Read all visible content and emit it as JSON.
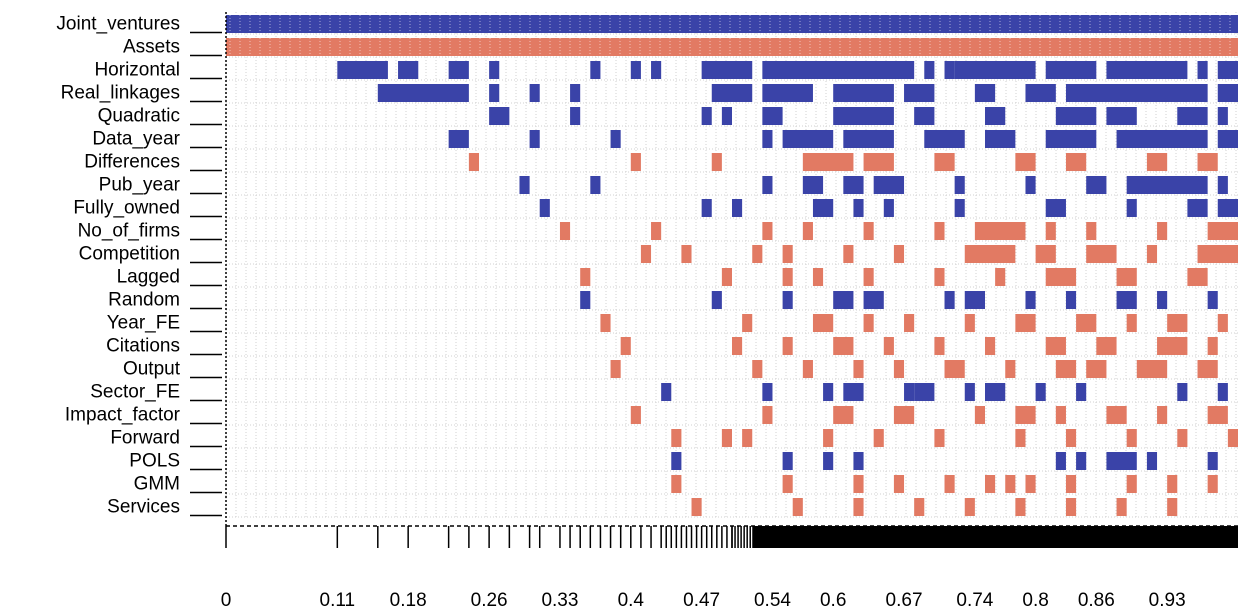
{
  "chart_data": {
    "type": "heatmap",
    "title": "",
    "xlabel": "",
    "ylabel": "",
    "x_range": [
      0,
      1
    ],
    "x_tick_labels": [
      "0",
      "0.11",
      "0.18",
      "0.26",
      "0.33",
      "0.4",
      "0.47",
      "0.54",
      "0.6",
      "0.67",
      "0.74",
      "0.8",
      "0.86",
      "0.93"
    ],
    "x_tick_values": [
      0,
      0.11,
      0.18,
      0.26,
      0.33,
      0.4,
      0.47,
      0.54,
      0.6,
      0.67,
      0.74,
      0.8,
      0.86,
      0.93
    ],
    "grid": true,
    "legend": "none",
    "colors": {
      "positive": "#3a43a8",
      "negative": "#e27a63",
      "axis": "#000000",
      "grid": "#d2d2d2"
    },
    "variables": [
      {
        "name": "Joint_ventures",
        "sign": "positive",
        "intervals": [
          [
            0.0,
            1.0
          ]
        ]
      },
      {
        "name": "Assets",
        "sign": "negative",
        "intervals": [
          [
            0.0,
            1.0
          ]
        ]
      },
      {
        "name": "Horizontal",
        "sign": "positive",
        "intervals": [
          [
            0.11,
            0.16
          ],
          [
            0.17,
            0.19
          ],
          [
            0.22,
            0.24
          ],
          [
            0.26,
            0.27
          ],
          [
            0.36,
            0.37
          ],
          [
            0.4,
            0.41
          ],
          [
            0.42,
            0.43
          ],
          [
            0.47,
            0.52
          ],
          [
            0.53,
            0.68
          ],
          [
            0.69,
            0.7
          ],
          [
            0.71,
            0.72
          ],
          [
            0.72,
            0.75
          ],
          [
            0.75,
            0.8
          ],
          [
            0.81,
            0.86
          ],
          [
            0.87,
            0.95
          ],
          [
            0.96,
            0.97
          ],
          [
            0.98,
            1.0
          ]
        ]
      },
      {
        "name": "Real_linkages",
        "sign": "positive",
        "intervals": [
          [
            0.15,
            0.24
          ],
          [
            0.26,
            0.27
          ],
          [
            0.3,
            0.31
          ],
          [
            0.34,
            0.35
          ],
          [
            0.48,
            0.52
          ],
          [
            0.53,
            0.58
          ],
          [
            0.6,
            0.66
          ],
          [
            0.67,
            0.7
          ],
          [
            0.74,
            0.76
          ],
          [
            0.79,
            0.82
          ],
          [
            0.83,
            0.97
          ],
          [
            0.98,
            1.0
          ]
        ]
      },
      {
        "name": "Quadratic",
        "sign": "positive",
        "intervals": [
          [
            0.26,
            0.28
          ],
          [
            0.34,
            0.35
          ],
          [
            0.47,
            0.48
          ],
          [
            0.49,
            0.5
          ],
          [
            0.53,
            0.55
          ],
          [
            0.6,
            0.66
          ],
          [
            0.68,
            0.7
          ],
          [
            0.75,
            0.77
          ],
          [
            0.82,
            0.86
          ],
          [
            0.87,
            0.9
          ],
          [
            0.94,
            0.97
          ],
          [
            0.98,
            0.99
          ]
        ]
      },
      {
        "name": "Data_year",
        "sign": "positive",
        "intervals": [
          [
            0.22,
            0.24
          ],
          [
            0.3,
            0.31
          ],
          [
            0.38,
            0.39
          ],
          [
            0.53,
            0.54
          ],
          [
            0.55,
            0.6
          ],
          [
            0.61,
            0.66
          ],
          [
            0.69,
            0.73
          ],
          [
            0.75,
            0.78
          ],
          [
            0.81,
            0.86
          ],
          [
            0.88,
            0.97
          ],
          [
            0.98,
            1.0
          ]
        ]
      },
      {
        "name": "Differences",
        "sign": "negative",
        "intervals": [
          [
            0.24,
            0.25
          ],
          [
            0.4,
            0.41
          ],
          [
            0.48,
            0.49
          ],
          [
            0.57,
            0.62
          ],
          [
            0.63,
            0.66
          ],
          [
            0.7,
            0.72
          ],
          [
            0.78,
            0.8
          ],
          [
            0.83,
            0.85
          ],
          [
            0.91,
            0.93
          ],
          [
            0.96,
            0.98
          ]
        ]
      },
      {
        "name": "Pub_year",
        "sign": "positive",
        "intervals": [
          [
            0.29,
            0.3
          ],
          [
            0.36,
            0.37
          ],
          [
            0.53,
            0.54
          ],
          [
            0.57,
            0.59
          ],
          [
            0.61,
            0.63
          ],
          [
            0.64,
            0.67
          ],
          [
            0.72,
            0.73
          ],
          [
            0.79,
            0.8
          ],
          [
            0.85,
            0.87
          ],
          [
            0.89,
            0.97
          ],
          [
            0.98,
            0.99
          ]
        ]
      },
      {
        "name": "Fully_owned",
        "sign": "positive",
        "intervals": [
          [
            0.31,
            0.32
          ],
          [
            0.47,
            0.48
          ],
          [
            0.5,
            0.51
          ],
          [
            0.58,
            0.6
          ],
          [
            0.62,
            0.63
          ],
          [
            0.65,
            0.66
          ],
          [
            0.72,
            0.73
          ],
          [
            0.81,
            0.83
          ],
          [
            0.89,
            0.9
          ],
          [
            0.95,
            0.97
          ],
          [
            0.98,
            1.0
          ]
        ]
      },
      {
        "name": "No_of_firms",
        "sign": "negative",
        "intervals": [
          [
            0.33,
            0.34
          ],
          [
            0.42,
            0.43
          ],
          [
            0.53,
            0.54
          ],
          [
            0.57,
            0.58
          ],
          [
            0.63,
            0.64
          ],
          [
            0.7,
            0.71
          ],
          [
            0.74,
            0.79
          ],
          [
            0.81,
            0.82
          ],
          [
            0.85,
            0.86
          ],
          [
            0.92,
            0.93
          ],
          [
            0.97,
            1.0
          ]
        ]
      },
      {
        "name": "Competition",
        "sign": "negative",
        "intervals": [
          [
            0.41,
            0.42
          ],
          [
            0.45,
            0.46
          ],
          [
            0.52,
            0.53
          ],
          [
            0.55,
            0.56
          ],
          [
            0.61,
            0.62
          ],
          [
            0.66,
            0.67
          ],
          [
            0.73,
            0.78
          ],
          [
            0.8,
            0.82
          ],
          [
            0.85,
            0.88
          ],
          [
            0.91,
            0.92
          ],
          [
            0.96,
            1.0
          ]
        ]
      },
      {
        "name": "Lagged",
        "sign": "negative",
        "intervals": [
          [
            0.35,
            0.36
          ],
          [
            0.49,
            0.5
          ],
          [
            0.55,
            0.56
          ],
          [
            0.58,
            0.59
          ],
          [
            0.63,
            0.64
          ],
          [
            0.7,
            0.71
          ],
          [
            0.76,
            0.77
          ],
          [
            0.81,
            0.84
          ],
          [
            0.88,
            0.9
          ],
          [
            0.95,
            0.97
          ]
        ]
      },
      {
        "name": "Random",
        "sign": "positive",
        "intervals": [
          [
            0.35,
            0.36
          ],
          [
            0.48,
            0.49
          ],
          [
            0.55,
            0.56
          ],
          [
            0.6,
            0.62
          ],
          [
            0.63,
            0.65
          ],
          [
            0.71,
            0.72
          ],
          [
            0.73,
            0.75
          ],
          [
            0.79,
            0.8
          ],
          [
            0.83,
            0.84
          ],
          [
            0.88,
            0.9
          ],
          [
            0.92,
            0.93
          ],
          [
            0.97,
            0.98
          ]
        ]
      },
      {
        "name": "Year_FE",
        "sign": "negative",
        "intervals": [
          [
            0.37,
            0.38
          ],
          [
            0.51,
            0.52
          ],
          [
            0.58,
            0.6
          ],
          [
            0.63,
            0.64
          ],
          [
            0.67,
            0.68
          ],
          [
            0.73,
            0.74
          ],
          [
            0.78,
            0.8
          ],
          [
            0.84,
            0.86
          ],
          [
            0.89,
            0.9
          ],
          [
            0.93,
            0.95
          ],
          [
            0.98,
            0.99
          ]
        ]
      },
      {
        "name": "Citations",
        "sign": "negative",
        "intervals": [
          [
            0.39,
            0.4
          ],
          [
            0.5,
            0.51
          ],
          [
            0.55,
            0.56
          ],
          [
            0.6,
            0.62
          ],
          [
            0.65,
            0.66
          ],
          [
            0.7,
            0.71
          ],
          [
            0.75,
            0.76
          ],
          [
            0.81,
            0.83
          ],
          [
            0.86,
            0.88
          ],
          [
            0.92,
            0.95
          ],
          [
            0.97,
            0.98
          ]
        ]
      },
      {
        "name": "Output",
        "sign": "negative",
        "intervals": [
          [
            0.38,
            0.39
          ],
          [
            0.52,
            0.53
          ],
          [
            0.57,
            0.58
          ],
          [
            0.62,
            0.63
          ],
          [
            0.66,
            0.67
          ],
          [
            0.71,
            0.73
          ],
          [
            0.77,
            0.78
          ],
          [
            0.82,
            0.84
          ],
          [
            0.85,
            0.87
          ],
          [
            0.9,
            0.93
          ],
          [
            0.96,
            0.98
          ]
        ]
      },
      {
        "name": "Sector_FE",
        "sign": "positive",
        "intervals": [
          [
            0.43,
            0.44
          ],
          [
            0.53,
            0.54
          ],
          [
            0.59,
            0.6
          ],
          [
            0.61,
            0.63
          ],
          [
            0.67,
            0.68
          ],
          [
            0.68,
            0.7
          ],
          [
            0.73,
            0.74
          ],
          [
            0.75,
            0.77
          ],
          [
            0.8,
            0.81
          ],
          [
            0.84,
            0.85
          ],
          [
            0.94,
            0.95
          ],
          [
            0.98,
            0.99
          ]
        ]
      },
      {
        "name": "Impact_factor",
        "sign": "negative",
        "intervals": [
          [
            0.4,
            0.41
          ],
          [
            0.53,
            0.54
          ],
          [
            0.6,
            0.62
          ],
          [
            0.66,
            0.68
          ],
          [
            0.74,
            0.75
          ],
          [
            0.78,
            0.8
          ],
          [
            0.82,
            0.83
          ],
          [
            0.87,
            0.89
          ],
          [
            0.92,
            0.93
          ],
          [
            0.97,
            0.99
          ]
        ]
      },
      {
        "name": "Forward",
        "sign": "negative",
        "intervals": [
          [
            0.44,
            0.45
          ],
          [
            0.49,
            0.5
          ],
          [
            0.51,
            0.52
          ],
          [
            0.59,
            0.6
          ],
          [
            0.64,
            0.65
          ],
          [
            0.7,
            0.71
          ],
          [
            0.78,
            0.79
          ],
          [
            0.83,
            0.84
          ],
          [
            0.89,
            0.9
          ],
          [
            0.94,
            0.95
          ],
          [
            0.99,
            1.0
          ]
        ]
      },
      {
        "name": "POLS",
        "sign": "positive",
        "intervals": [
          [
            0.44,
            0.45
          ],
          [
            0.55,
            0.56
          ],
          [
            0.59,
            0.6
          ],
          [
            0.62,
            0.63
          ],
          [
            0.82,
            0.83
          ],
          [
            0.84,
            0.85
          ],
          [
            0.87,
            0.9
          ],
          [
            0.91,
            0.92
          ],
          [
            0.97,
            0.98
          ]
        ]
      },
      {
        "name": "GMM",
        "sign": "negative",
        "intervals": [
          [
            0.44,
            0.45
          ],
          [
            0.55,
            0.56
          ],
          [
            0.62,
            0.63
          ],
          [
            0.66,
            0.67
          ],
          [
            0.71,
            0.72
          ],
          [
            0.75,
            0.76
          ],
          [
            0.77,
            0.78
          ],
          [
            0.79,
            0.8
          ],
          [
            0.83,
            0.84
          ],
          [
            0.89,
            0.9
          ],
          [
            0.93,
            0.94
          ],
          [
            0.97,
            0.98
          ]
        ]
      },
      {
        "name": "Services",
        "sign": "negative",
        "intervals": [
          [
            0.46,
            0.47
          ],
          [
            0.56,
            0.57
          ],
          [
            0.62,
            0.63
          ],
          [
            0.68,
            0.69
          ],
          [
            0.73,
            0.74
          ],
          [
            0.78,
            0.79
          ],
          [
            0.83,
            0.84
          ],
          [
            0.88,
            0.89
          ],
          [
            0.93,
            0.94
          ]
        ]
      }
    ],
    "axis_ticks": [
      0.0,
      0.11,
      0.15,
      0.18,
      0.22,
      0.24,
      0.26,
      0.28,
      0.3,
      0.31,
      0.33,
      0.34,
      0.35,
      0.36,
      0.37,
      0.38,
      0.39,
      0.4,
      0.41,
      0.42,
      0.43,
      0.435,
      0.44,
      0.445,
      0.45,
      0.455,
      0.46,
      0.465,
      0.47,
      0.475,
      0.48,
      0.485,
      0.49,
      0.495,
      0.5
    ],
    "axis_solid_from": 0.52
  }
}
